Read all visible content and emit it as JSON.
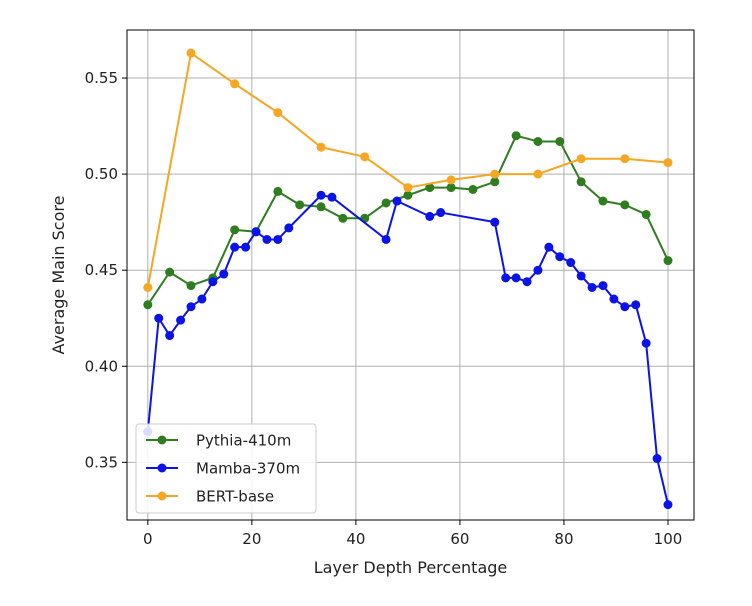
{
  "chart_data": {
    "type": "line",
    "title": "",
    "xlabel": "Layer Depth Percentage",
    "ylabel": "Average Main Score",
    "xlim": [
      -4,
      105
    ],
    "ylim": [
      0.32,
      0.575
    ],
    "xticks": [
      0,
      20,
      40,
      60,
      80,
      100
    ],
    "yticks": [
      0.35,
      0.4,
      0.45,
      0.5,
      0.55
    ],
    "xtick_labels": [
      "0",
      "20",
      "40",
      "60",
      "80",
      "100"
    ],
    "ytick_labels": [
      "0.35",
      "0.40",
      "0.45",
      "0.50",
      "0.55"
    ],
    "grid": true,
    "legend_position": "lower-left",
    "series": [
      {
        "name": "Pythia-410m",
        "color": "#2f7d20",
        "x": [
          0,
          4.2,
          8.3,
          12.5,
          16.7,
          20.8,
          25.0,
          29.2,
          33.3,
          37.5,
          41.7,
          45.8,
          50.0,
          54.2,
          58.3,
          62.5,
          66.7,
          70.8,
          75.0,
          79.2,
          83.3,
          87.5,
          91.7,
          95.8,
          100
        ],
        "y": [
          0.432,
          0.449,
          0.442,
          0.446,
          0.471,
          0.47,
          0.491,
          0.484,
          0.483,
          0.477,
          0.477,
          0.485,
          0.489,
          0.493,
          0.493,
          0.492,
          0.496,
          0.52,
          0.517,
          0.517,
          0.496,
          0.486,
          0.484,
          0.479,
          0.455
        ]
      },
      {
        "name": "Mamba-370m",
        "color": "#0b13e6",
        "x": [
          0,
          2.1,
          4.2,
          6.3,
          8.3,
          10.4,
          12.5,
          14.6,
          16.7,
          18.8,
          20.8,
          22.9,
          25.0,
          27.1,
          33.3,
          35.4,
          45.8,
          47.9,
          54.2,
          56.3,
          66.7,
          68.8,
          70.8,
          72.9,
          75.0,
          77.1,
          79.2,
          81.3,
          83.3,
          85.4,
          87.5,
          89.6,
          91.7,
          93.8,
          95.8,
          97.9,
          100
        ],
        "y": [
          0.366,
          0.425,
          0.416,
          0.424,
          0.431,
          0.435,
          0.444,
          0.448,
          0.462,
          0.462,
          0.47,
          0.466,
          0.466,
          0.472,
          0.489,
          0.488,
          0.466,
          0.486,
          0.478,
          0.48,
          0.475,
          0.446,
          0.446,
          0.444,
          0.45,
          0.462,
          0.457,
          0.454,
          0.447,
          0.441,
          0.442,
          0.435,
          0.431,
          0.432,
          0.412,
          0.352,
          0.328
        ]
      },
      {
        "name": "BERT-base",
        "color": "#f5a623",
        "x": [
          0,
          8.3,
          16.7,
          25.0,
          33.3,
          41.7,
          50.0,
          58.3,
          66.7,
          75.0,
          83.3,
          91.7,
          100
        ],
        "y": [
          0.441,
          0.563,
          0.547,
          0.532,
          0.514,
          0.509,
          0.493,
          0.497,
          0.5,
          0.5,
          0.508,
          0.508,
          0.506
        ]
      }
    ]
  }
}
